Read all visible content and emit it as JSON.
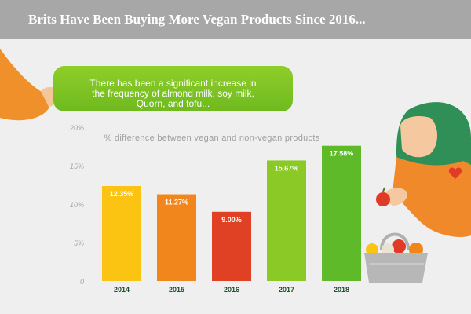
{
  "header": {
    "title": "Brits Have Been Buying More Vegan Products Since 2016..."
  },
  "callout": {
    "text": "There has been a significant increase in\nthe frequency of  almond milk, soy milk,\nQuorn, and tofu..."
  },
  "chart_data": {
    "type": "bar",
    "title": "",
    "subtitle": "% difference between vegan and non-vegan products",
    "categories": [
      "2014",
      "2015",
      "2016",
      "2017",
      "2018"
    ],
    "values": [
      12.35,
      11.27,
      9.0,
      15.67,
      17.58
    ],
    "data_labels": [
      "12.35%",
      "11.27%",
      "9.00%",
      "15.67%",
      "17.58%"
    ],
    "colors": [
      "#fbc412",
      "#f0861c",
      "#e04124",
      "#8bc926",
      "#5fba2a"
    ],
    "ylim": [
      0,
      20
    ],
    "yticks": [
      0,
      5,
      10,
      15,
      20
    ],
    "ytick_labels": [
      "0",
      "5%",
      "10%",
      "15%",
      "20%"
    ],
    "grid": false
  }
}
